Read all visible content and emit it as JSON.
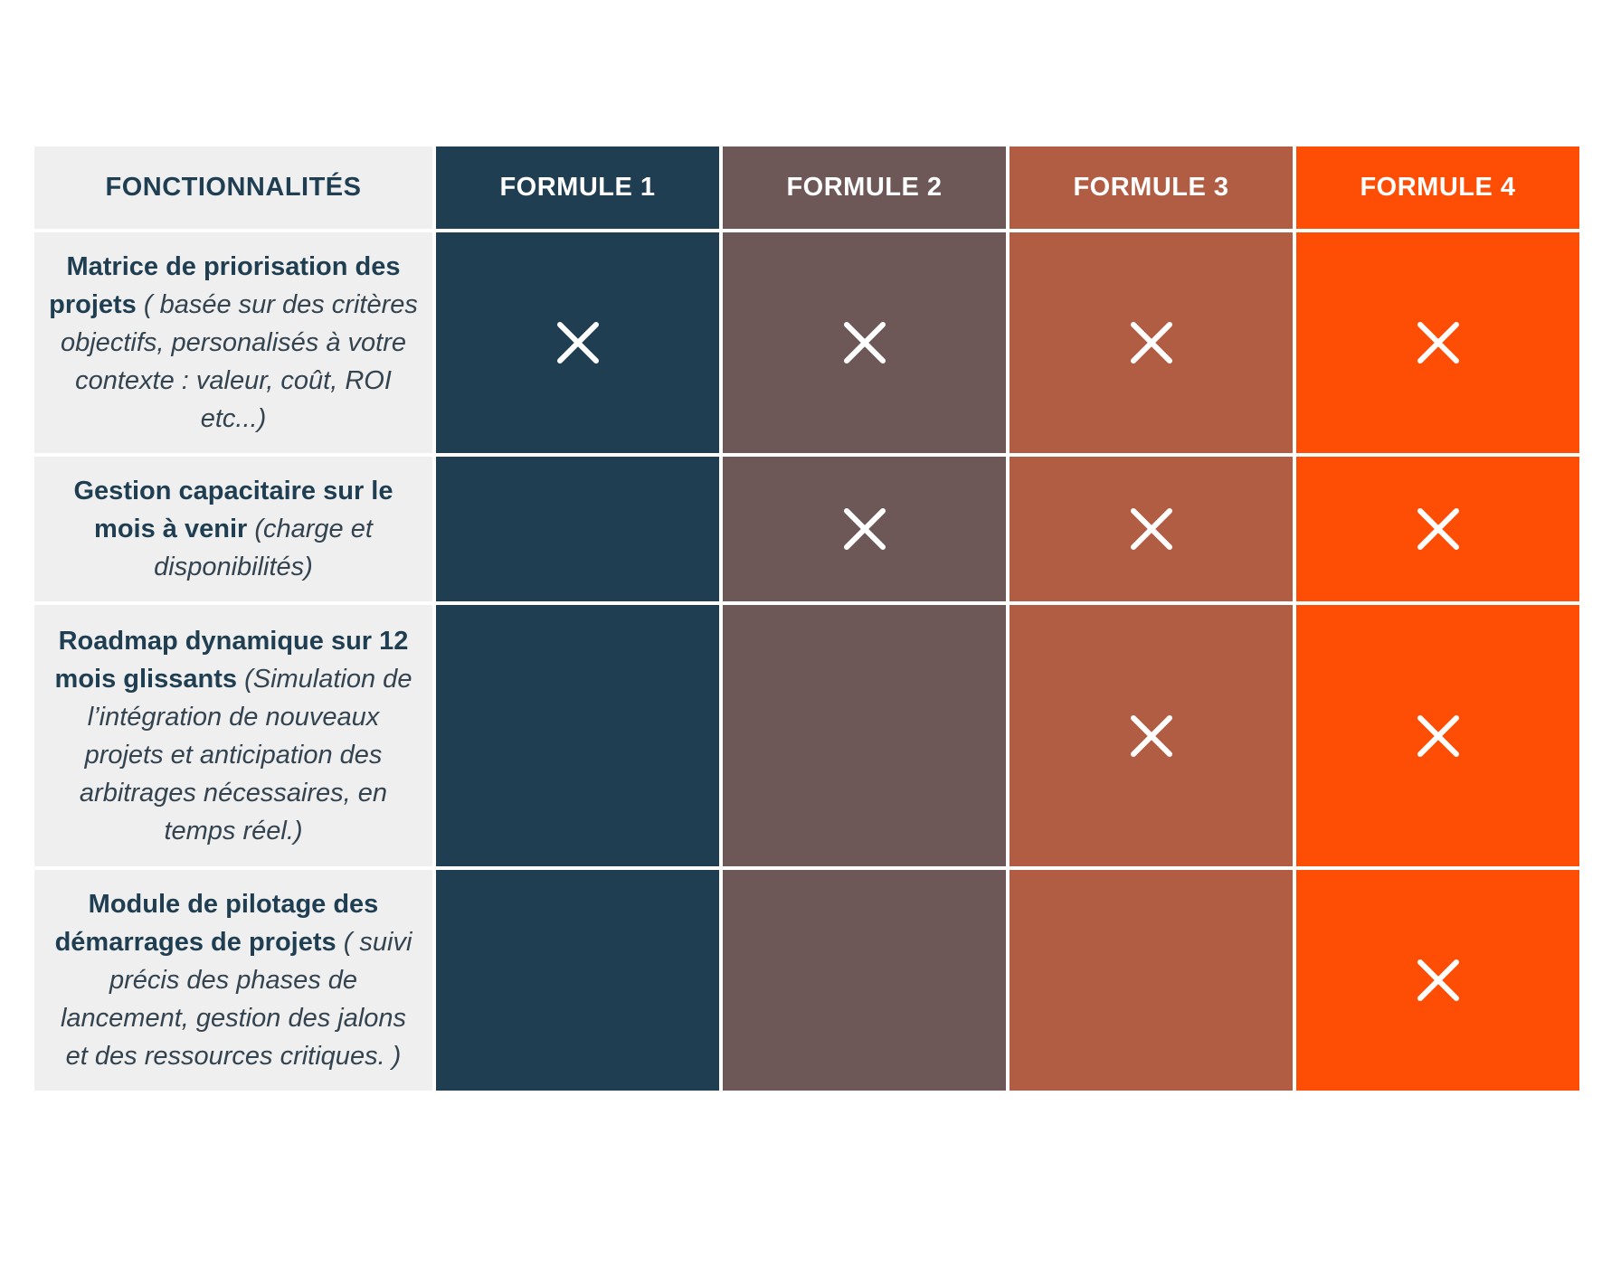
{
  "header": {
    "feature_label": "FONCTIONNALITÉS",
    "formulas": [
      "FORMULE 1",
      "FORMULE 2",
      "FORMULE 3",
      "FORMULE 4"
    ]
  },
  "colors": {
    "formule_1": "#1f3e52",
    "formule_2": "#6d5757",
    "formule_3": "#b15d44",
    "formule_4": "#fe4d04",
    "feature_column": "#efefef",
    "mark": "#ffffff"
  },
  "mark_icon": "x-mark-icon",
  "rows": [
    {
      "title": "Matrice de priorisation des projets",
      "description": " ( basée sur des critères objectifs, personalisés à votre contexte : valeur, coût, ROI etc...)",
      "included": [
        true,
        true,
        true,
        true
      ]
    },
    {
      "title": "Gestion capacitaire sur le mois à venir",
      "description": " (charge et disponibilités)",
      "included": [
        false,
        true,
        true,
        true
      ]
    },
    {
      "title": "Roadmap dynamique sur 12 mois glissants",
      "description": " (Simulation de l’intégration de nouveaux projets et anticipation des arbitrages nécessaires, en temps réel.)",
      "included": [
        false,
        false,
        true,
        true
      ]
    },
    {
      "title": "Module de pilotage des démarrages de projets",
      "description": " ( suivi précis des phases de lancement, gestion des jalons et des ressources critiques. )",
      "included": [
        false,
        false,
        false,
        true
      ]
    }
  ]
}
